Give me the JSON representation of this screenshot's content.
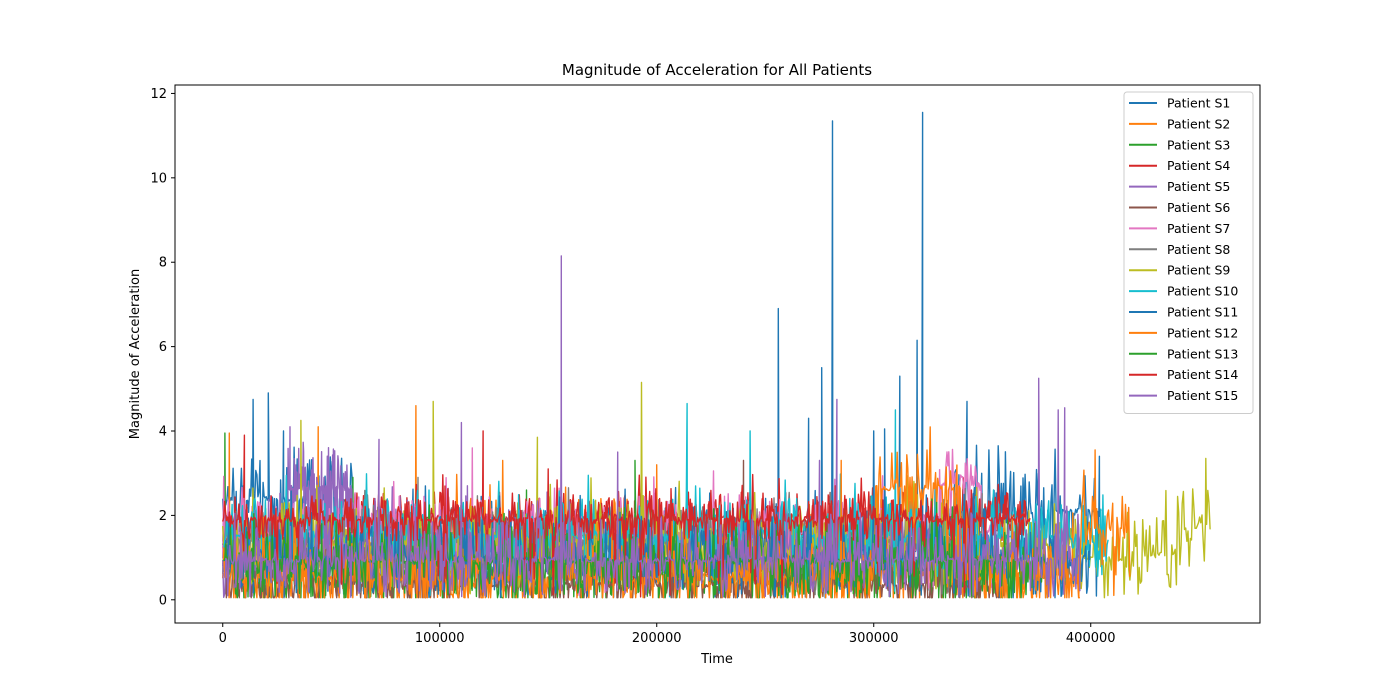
{
  "chart_data": {
    "type": "line",
    "title": "Magnitude of Acceleration for All Patients",
    "xlabel": "Time",
    "ylabel": "Magnitude of Acceleration",
    "xlim": [
      -22000,
      478000
    ],
    "ylim": [
      -0.55,
      12.2
    ],
    "xticks": [
      0,
      100000,
      200000,
      300000,
      400000
    ],
    "xtick_labels": [
      "0",
      "100000",
      "200000",
      "300000",
      "400000"
    ],
    "yticks": [
      0,
      2,
      4,
      6,
      8,
      10,
      12
    ],
    "ytick_labels": [
      "0",
      "2",
      "4",
      "6",
      "8",
      "10",
      "12"
    ],
    "grid": false,
    "legend_position": "upper right",
    "series": [
      {
        "name": "Patient S1",
        "color": "#1f77b4",
        "x_end": 405000,
        "base": 1.2,
        "noise": 1.0,
        "level_bands": [
          [
            0,
            60000,
            2.4
          ],
          [
            330000,
            405000,
            2.1
          ]
        ],
        "spikes": [
          [
            14000,
            4.75
          ],
          [
            21000,
            4.9
          ],
          [
            28000,
            4.0
          ],
          [
            256000,
            6.9
          ],
          [
            276000,
            5.5
          ],
          [
            281000,
            11.35
          ],
          [
            312000,
            5.3
          ],
          [
            320000,
            6.15
          ],
          [
            322500,
            11.55
          ],
          [
            343000,
            4.7
          ],
          [
            404000,
            3.4
          ]
        ]
      },
      {
        "name": "Patient S2",
        "color": "#ff7f0e",
        "x_end": 395000,
        "base": 0.6,
        "noise": 0.9,
        "level_bands": [
          [
            100000,
            200000,
            1.5
          ]
        ],
        "spikes": [
          [
            3000,
            3.95
          ],
          [
            44000,
            4.1
          ],
          [
            89000,
            4.6
          ],
          [
            129000,
            3.3
          ],
          [
            200000,
            3.2
          ]
        ]
      },
      {
        "name": "Patient S3",
        "color": "#2ca02c",
        "x_end": 360000,
        "base": 0.7,
        "noise": 0.8,
        "level_bands": [],
        "spikes": [
          [
            1000,
            3.95
          ],
          [
            60000,
            2.9
          ],
          [
            140000,
            2.6
          ]
        ]
      },
      {
        "name": "Patient S4",
        "color": "#d62728",
        "x_end": 370000,
        "base": 1.45,
        "noise": 0.6,
        "level_bands": [
          [
            60000,
            370000,
            1.97
          ]
        ],
        "spikes": [
          [
            10000,
            3.9
          ],
          [
            120000,
            4.0
          ],
          [
            345000,
            2.6
          ]
        ]
      },
      {
        "name": "Patient S5",
        "color": "#9467bd",
        "x_end": 160000,
        "base": 1.2,
        "noise": 1.0,
        "level_bands": [
          [
            30000,
            60000,
            2.65
          ]
        ],
        "spikes": [
          [
            31000,
            4.1
          ],
          [
            156000,
            8.15
          ]
        ]
      },
      {
        "name": "Patient S6",
        "color": "#8c564b",
        "x_end": 360000,
        "base": 0.35,
        "noise": 0.7,
        "level_bands": [],
        "spikes": [
          [
            240000,
            3.3
          ]
        ]
      },
      {
        "name": "Patient S7",
        "color": "#e377c2",
        "x_end": 360000,
        "base": 1.6,
        "noise": 0.9,
        "level_bands": [
          [
            330000,
            350000,
            2.75
          ]
        ],
        "spikes": [
          [
            115000,
            3.6
          ],
          [
            300000,
            3.1
          ]
        ]
      },
      {
        "name": "Patient S8",
        "color": "#7f7f7f",
        "x_end": 350000,
        "base": 1.4,
        "noise": 0.8,
        "level_bands": [],
        "spikes": [
          [
            90000,
            2.9
          ]
        ]
      },
      {
        "name": "Patient S9",
        "color": "#bcbd22",
        "x_end": 455000,
        "base": 1.3,
        "noise": 1.0,
        "level_bands": [
          [
            395000,
            415000,
            0.97
          ],
          [
            415000,
            440000,
            1.1
          ],
          [
            440000,
            455000,
            1.7
          ]
        ],
        "spikes": [
          [
            36000,
            4.25
          ],
          [
            97000,
            4.7
          ],
          [
            145000,
            3.85
          ],
          [
            193000,
            5.15
          ],
          [
            453000,
            3.35
          ]
        ]
      },
      {
        "name": "Patient S10",
        "color": "#17becf",
        "x_end": 408000,
        "base": 1.5,
        "noise": 0.9,
        "level_bands": [
          [
            395000,
            408000,
            1.35
          ]
        ],
        "spikes": [
          [
            214000,
            4.65
          ],
          [
            243000,
            4.0
          ],
          [
            310000,
            4.5
          ]
        ]
      },
      {
        "name": "Patient S11",
        "color": "#1f77b4",
        "x_end": 400000,
        "base": 1.0,
        "noise": 1.0,
        "level_bands": [],
        "spikes": [
          [
            270000,
            4.3
          ],
          [
            300000,
            4.0
          ],
          [
            305000,
            4.05
          ]
        ]
      },
      {
        "name": "Patient S12",
        "color": "#ff7f0e",
        "x_end": 418000,
        "base": 0.5,
        "noise": 0.9,
        "level_bands": [
          [
            300000,
            340000,
            2.65
          ],
          [
            395000,
            418000,
            1.65
          ]
        ],
        "spikes": [
          [
            285000,
            3.3
          ],
          [
            402000,
            3.55
          ]
        ]
      },
      {
        "name": "Patient S13",
        "color": "#2ca02c",
        "x_end": 380000,
        "base": 0.9,
        "noise": 0.9,
        "level_bands": [],
        "spikes": [
          [
            190000,
            3.3
          ]
        ]
      },
      {
        "name": "Patient S14",
        "color": "#d62728",
        "x_end": 372000,
        "base": 1.9,
        "noise": 0.5,
        "level_bands": [],
        "spikes": [
          [
            150000,
            3.1
          ]
        ]
      },
      {
        "name": "Patient S15",
        "color": "#9467bd",
        "x_end": 395000,
        "base": 0.95,
        "noise": 0.9,
        "level_bands": [],
        "spikes": [
          [
            72000,
            3.8
          ],
          [
            110000,
            4.2
          ],
          [
            156000,
            4.45
          ],
          [
            182000,
            3.5
          ],
          [
            275000,
            3.3
          ],
          [
            283000,
            4.75
          ],
          [
            376000,
            5.25
          ],
          [
            385000,
            4.5
          ],
          [
            388000,
            4.55
          ]
        ]
      }
    ]
  }
}
